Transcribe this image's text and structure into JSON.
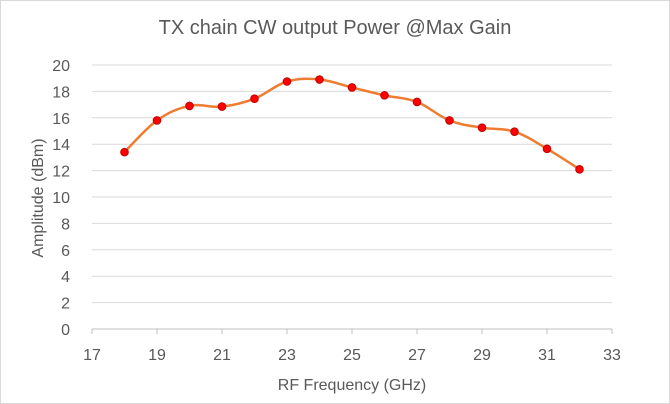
{
  "chart_data": {
    "type": "line",
    "title": "TX chain CW output Power @Max Gain",
    "xlabel": "RF Frequency (GHz)",
    "ylabel": "Amplitude (dBm)",
    "xlim": [
      17,
      33
    ],
    "ylim": [
      0,
      20
    ],
    "xticks": [
      "17",
      "19",
      "21",
      "23",
      "25",
      "27",
      "29",
      "31",
      "33"
    ],
    "yticks": [
      "0",
      "2",
      "4",
      "6",
      "8",
      "10",
      "12",
      "14",
      "16",
      "18",
      "20"
    ],
    "grid": "horizontal",
    "legend": "none",
    "series": [
      {
        "line_color": "#ED7D31",
        "marker_color": "#FF0000",
        "x": [
          18,
          19,
          20,
          21,
          22,
          23,
          24,
          25,
          26,
          27,
          28,
          29,
          30,
          31,
          32
        ],
        "y": [
          13.4,
          15.8,
          16.9,
          16.85,
          17.45,
          18.75,
          18.9,
          18.3,
          17.7,
          17.2,
          15.8,
          15.25,
          14.95,
          13.65,
          12.1
        ]
      }
    ]
  }
}
